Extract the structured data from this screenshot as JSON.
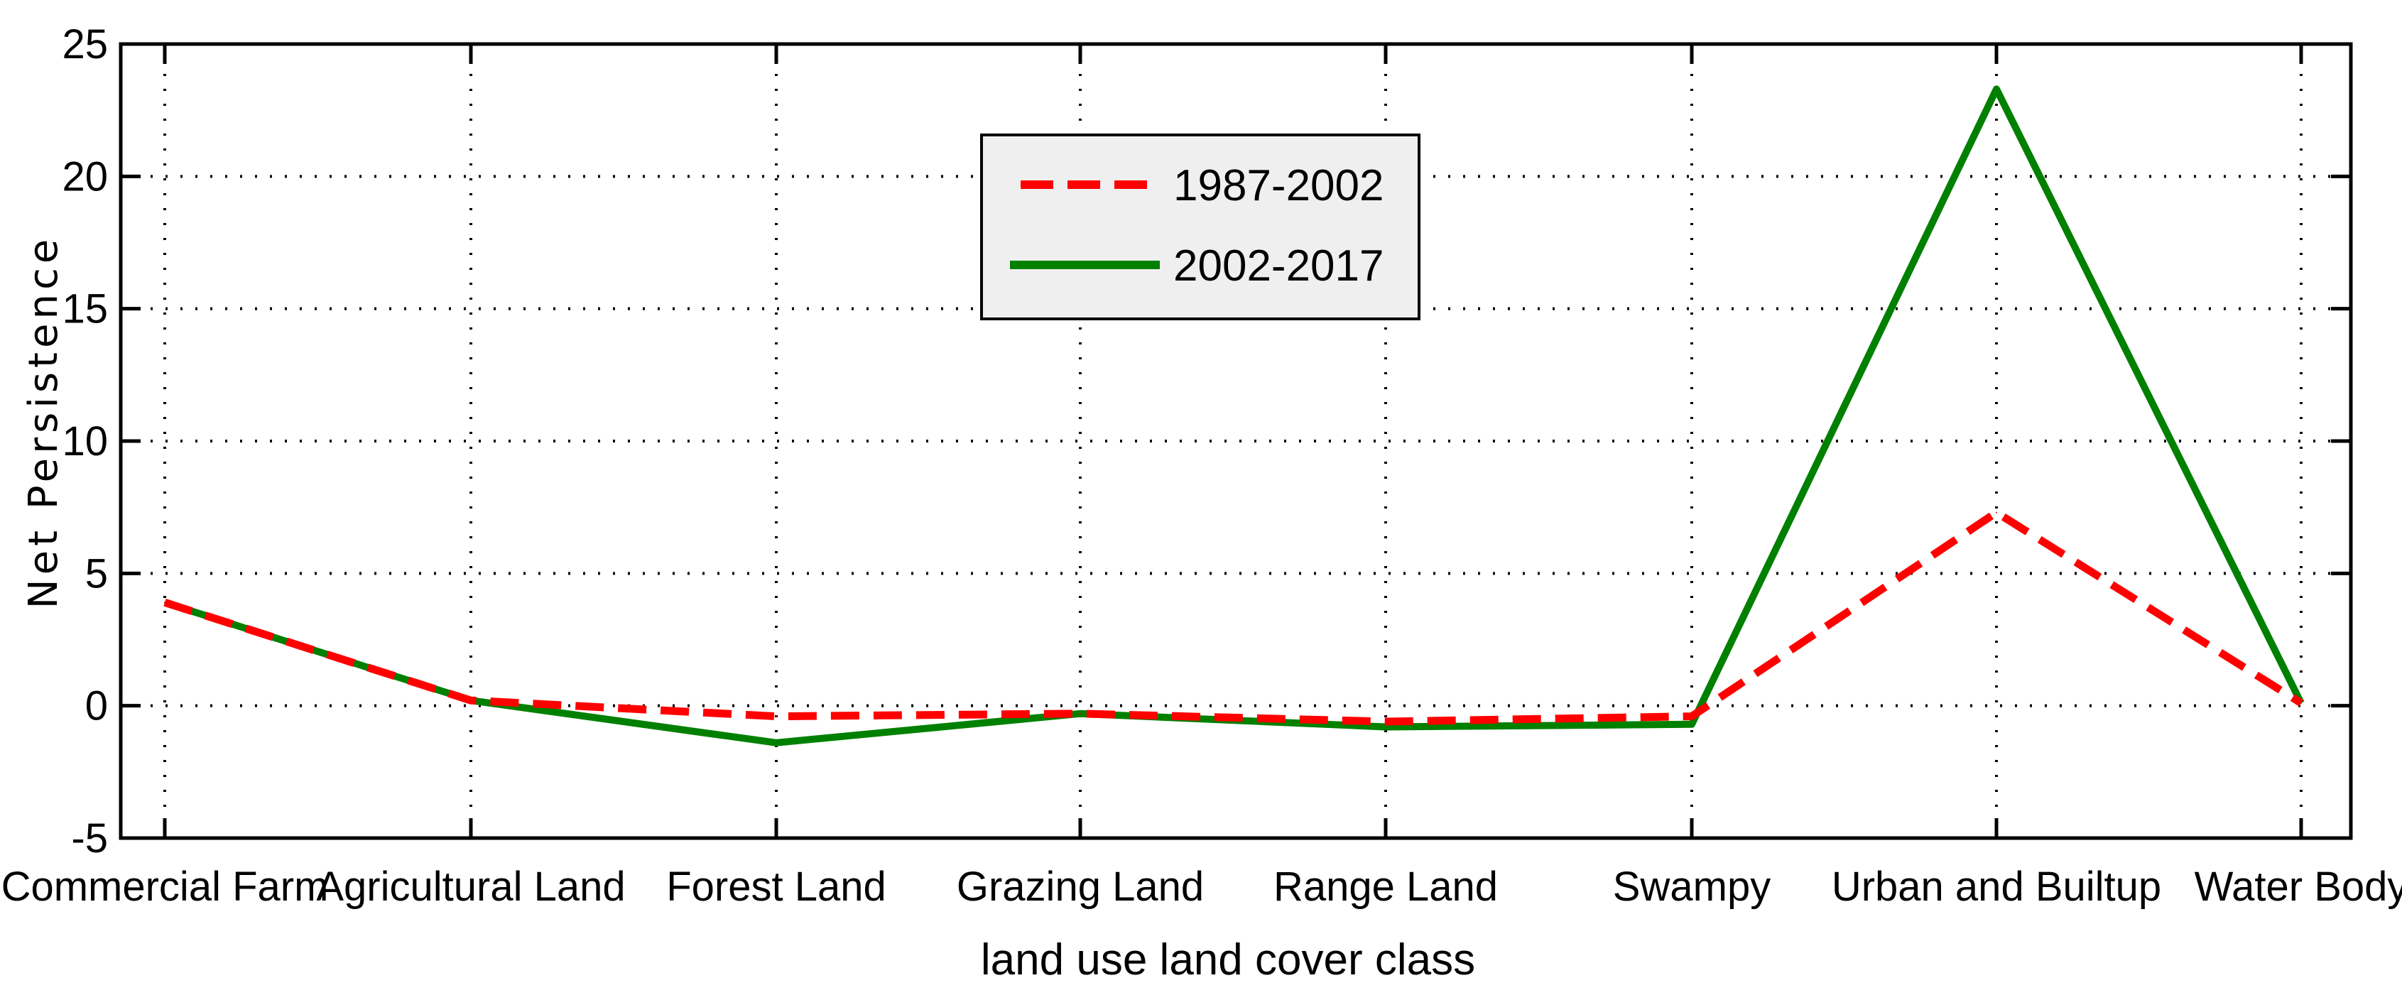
{
  "chart_data": {
    "type": "line",
    "title": "",
    "xlabel": "land use land cover class",
    "ylabel": "Net Persistence",
    "categories": [
      "Commercial Farm",
      "Agricultural Land",
      "Forest Land",
      "Grazing Land",
      "Range Land",
      "Swampy",
      "Urban and Builtup",
      "Water Body"
    ],
    "yticks": [
      "-5",
      "0",
      "5",
      "10",
      "15",
      "20",
      "25"
    ],
    "ylim": [
      -5,
      25
    ],
    "grid": true,
    "legend_position": "top-center",
    "series": [
      {
        "name": "1987-2002",
        "color": "#ff0000",
        "style": "dashed",
        "values": [
          3.9,
          0.2,
          -0.4,
          -0.3,
          -0.6,
          -0.4,
          7.3,
          0.1
        ]
      },
      {
        "name": "2002-2017",
        "color": "#008000",
        "style": "solid",
        "values": [
          3.9,
          0.2,
          -1.4,
          -0.3,
          -0.8,
          -0.7,
          23.3,
          0.1
        ]
      }
    ]
  }
}
